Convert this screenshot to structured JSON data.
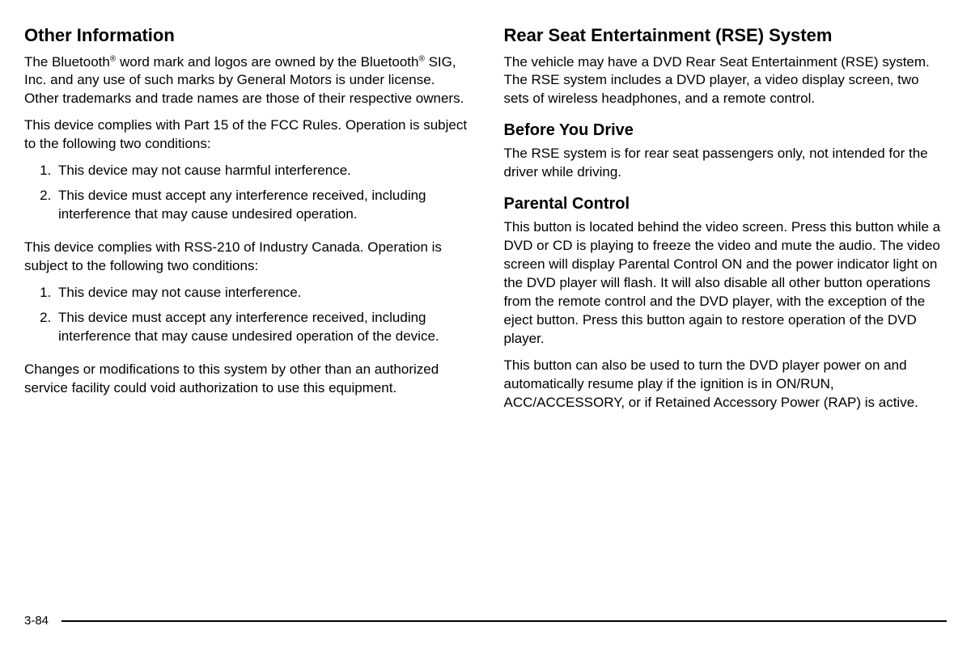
{
  "page": {
    "number": "3-84",
    "background_color": "#ffffff",
    "text_color": "#000000",
    "body_fontsize": 17,
    "h2_fontsize": 22,
    "h3_fontsize": 20,
    "line_color": "#000000"
  },
  "left_column": {
    "heading1": "Other Information",
    "para1_pre": "The Bluetooth",
    "para1_mid": " word mark and logos are owned by the Bluetooth",
    "para1_post": " SIG, Inc. and any use of such marks by General Motors is under license. Other trademarks and trade names are those of their respective owners.",
    "reg_symbol": "®",
    "para2": "This device complies with Part 15 of the FCC Rules. Operation is subject to the following two conditions:",
    "list1": {
      "item1": "This device may not cause harmful interference.",
      "item2": "This device must accept any interference received, including interference that may cause undesired operation."
    },
    "para3": "This device complies with RSS-210 of Industry Canada. Operation is subject to the following two conditions:",
    "list2": {
      "item1": "This device may not cause interference.",
      "item2": "This device must accept any interference received, including interference that may cause undesired operation of the device."
    },
    "para4": "Changes or modifications to this system by other than an authorized service facility could void authorization to use this equipment."
  },
  "right_column": {
    "heading1": "Rear Seat Entertainment (RSE) System",
    "para1": "The vehicle may have a DVD Rear Seat Entertainment (RSE) system. The RSE system includes a DVD player, a video display screen, two sets of wireless headphones, and a remote control.",
    "heading2": "Before You Drive",
    "para2": "The RSE system is for rear seat passengers only, not intended for the driver while driving.",
    "heading3": "Parental Control",
    "para3": "This button is located behind the video screen. Press this button while a DVD or CD is playing to freeze the video and mute the audio. The video screen will display Parental Control ON and the power indicator light on the DVD player will flash. It will also disable all other button operations from the remote control and the DVD player, with the exception of the eject button. Press this button again to restore operation of the DVD player.",
    "para4": "This button can also be used to turn the DVD player power on and automatically resume play if the ignition is in ON/RUN, ACC/ACCESSORY, or if Retained Accessory Power (RAP) is active."
  }
}
